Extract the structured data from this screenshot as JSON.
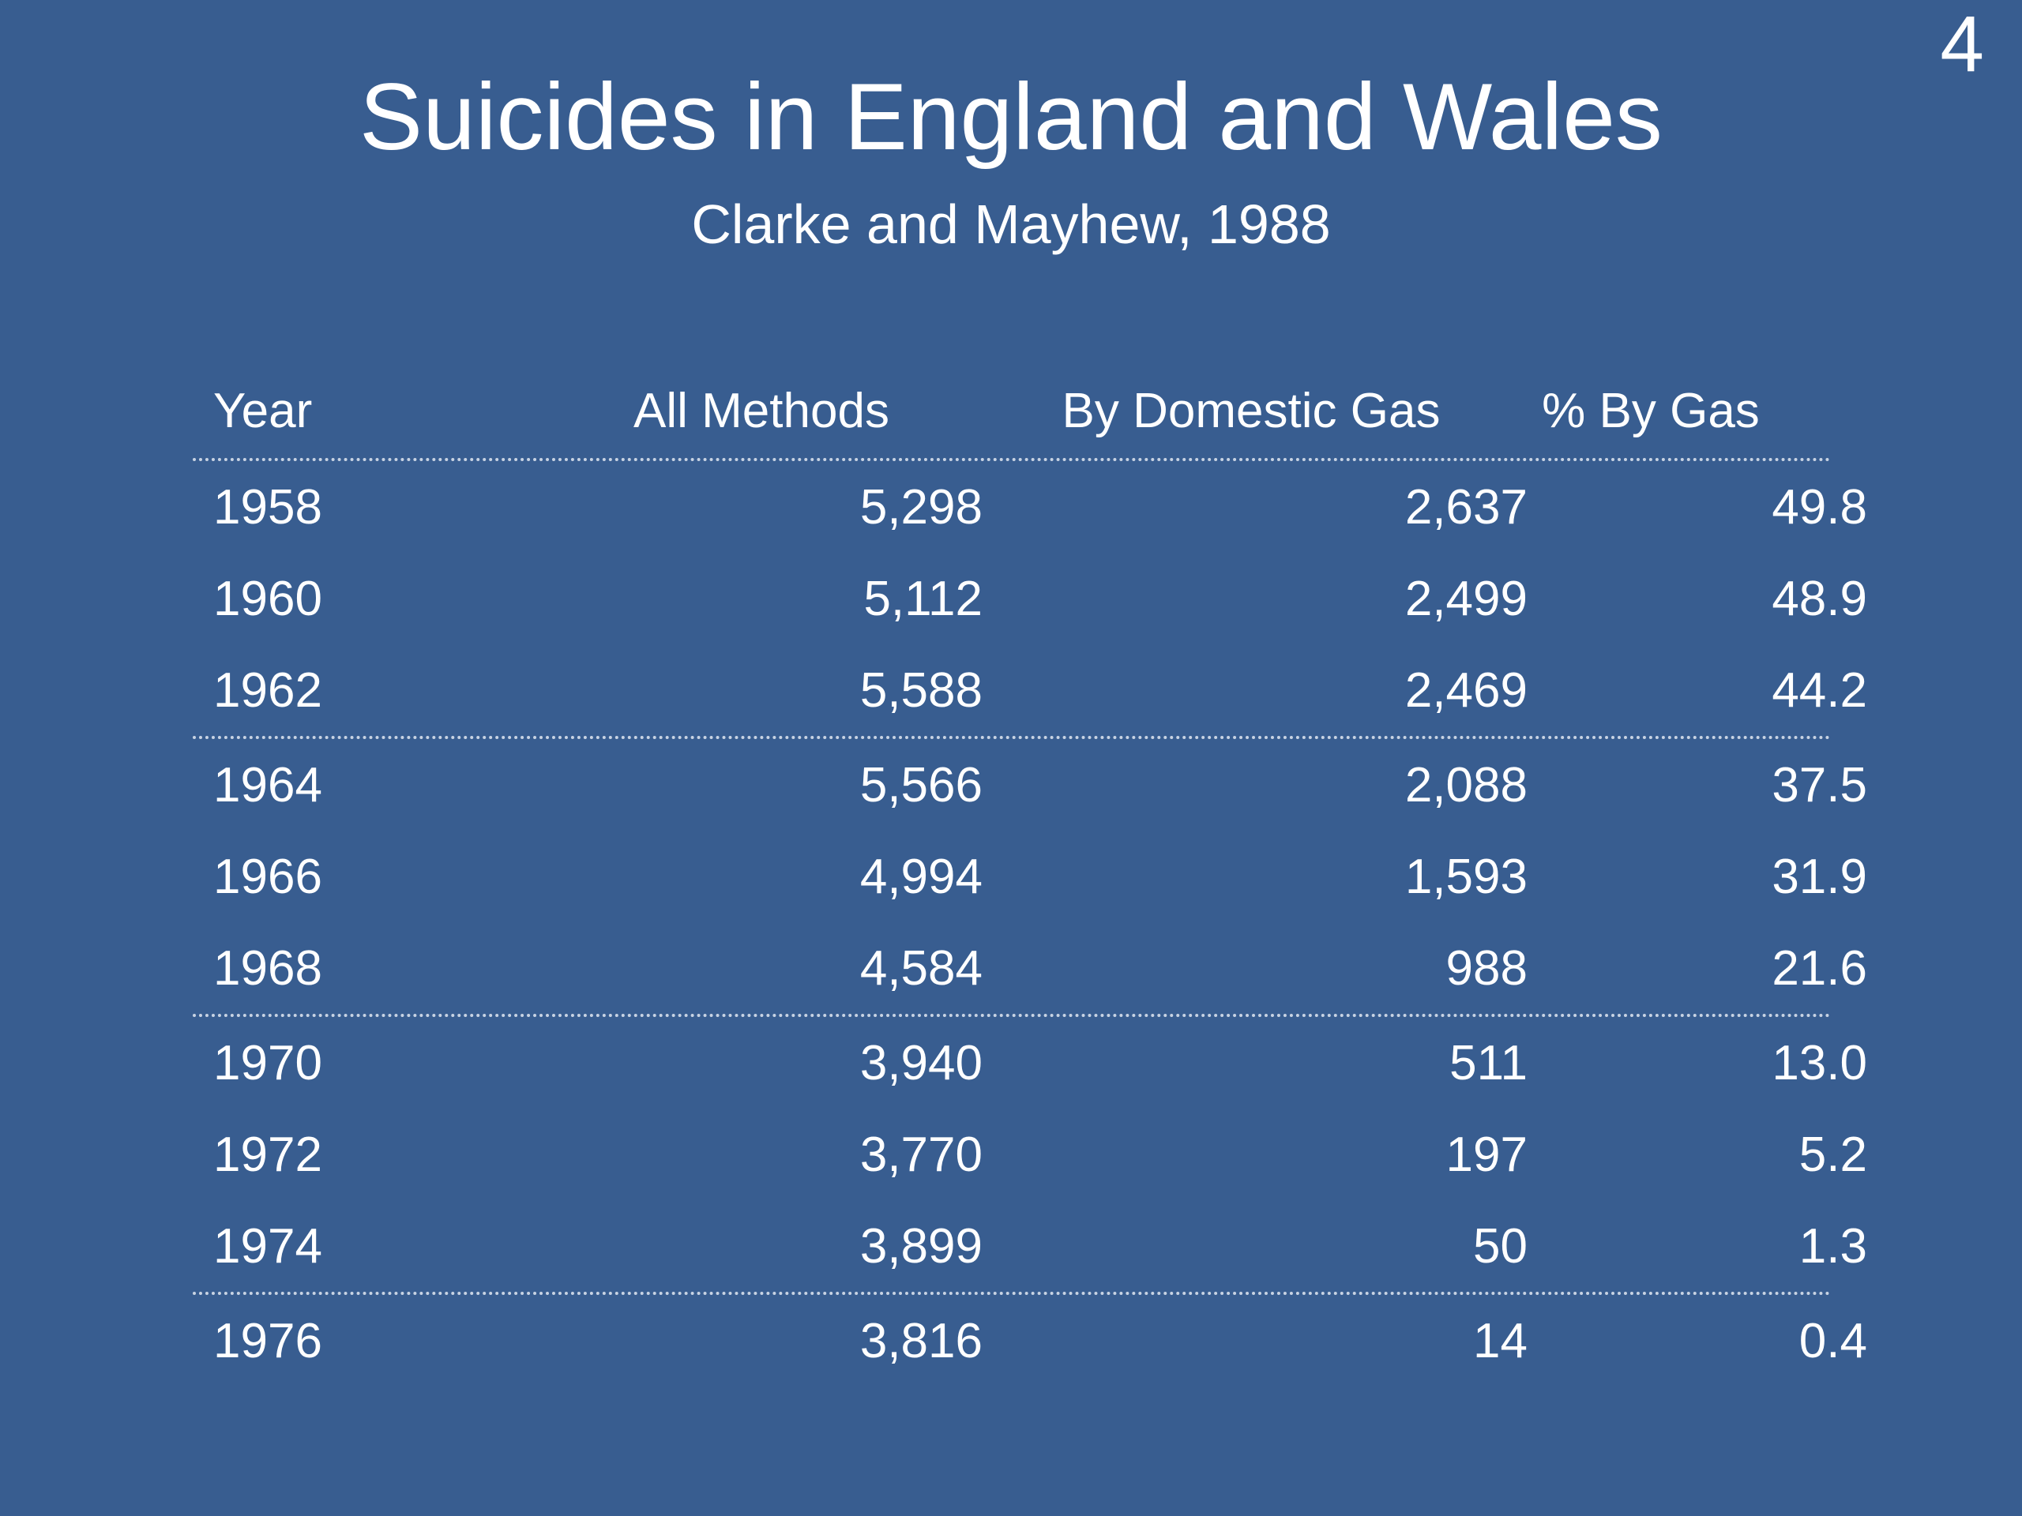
{
  "slide": {
    "number": "4",
    "title": "Suicides in England and Wales",
    "subtitle": "Clarke and Mayhew, 1988"
  },
  "table": {
    "headers": [
      "Year",
      "All Methods",
      "By Domestic Gas",
      "%  By Gas"
    ],
    "rows": [
      [
        "1958",
        "5,298",
        "2,637",
        "49.8"
      ],
      [
        "1960",
        "5,112",
        "2,499",
        "48.9"
      ],
      [
        "1962",
        "5,588",
        "2,469",
        "44.2"
      ],
      [
        "1964",
        "5,566",
        "2,088",
        "37.5"
      ],
      [
        "1966",
        "4,994",
        "1,593",
        "31.9"
      ],
      [
        "1968",
        "4,584",
        "988",
        "21.6"
      ],
      [
        "1970",
        "3,940",
        "511",
        "13.0"
      ],
      [
        "1972",
        "3,770",
        "197",
        "5.2"
      ],
      [
        "1974",
        "3,899",
        "50",
        "1.3"
      ],
      [
        "1976",
        "3,816",
        "14",
        "0.4"
      ]
    ]
  },
  "colors": {
    "background": "#385d90",
    "text": "#ffffff",
    "separator": "#c8d3e3"
  }
}
